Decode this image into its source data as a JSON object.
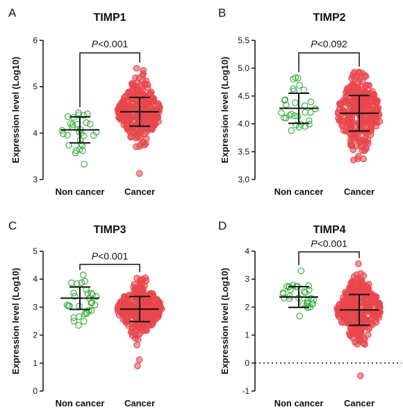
{
  "chart_data": [
    {
      "type": "scatter",
      "panel": "A",
      "title": "TIMP1",
      "ylabel": "Expression level (Log10)",
      "ylim": [
        3,
        6
      ],
      "yticks": [
        "3",
        "4",
        "5",
        "6"
      ],
      "categories": [
        "Non cancer",
        "Cancer"
      ],
      "p_value": {
        "prefix": "P",
        "rest": "<0.001"
      },
      "reference_line": null,
      "series": [
        {
          "category": "Non cancer",
          "color": "#3cb043",
          "n": 30,
          "mean": 4.07,
          "sd": 0.28,
          "min": 3.33,
          "max": 4.44
        },
        {
          "category": "Cancer",
          "color": "#e8474c",
          "n": 300,
          "mean": 4.46,
          "sd": 0.31,
          "min": 3.13,
          "max": 5.4
        }
      ]
    },
    {
      "type": "scatter",
      "panel": "B",
      "title": "TIMP2",
      "ylabel": "Expression level (Log10)",
      "ylim": [
        3.0,
        5.5
      ],
      "yticks": [
        "3.0",
        "3.5",
        "4.0",
        "4.5",
        "5.0",
        "5.5"
      ],
      "categories": [
        "Non cancer",
        "Cancer"
      ],
      "p_value": {
        "prefix": "P",
        "rest": "<0.092"
      },
      "reference_line": null,
      "series": [
        {
          "category": "Non cancer",
          "color": "#3cb043",
          "n": 30,
          "mean": 4.28,
          "sd": 0.27,
          "min": 3.88,
          "max": 4.83
        },
        {
          "category": "Cancer",
          "color": "#e8474c",
          "n": 300,
          "mean": 4.19,
          "sd": 0.32,
          "min": 3.35,
          "max": 4.93
        }
      ]
    },
    {
      "type": "scatter",
      "panel": "C",
      "title": "TIMP3",
      "ylabel": "Expression level (Log10)",
      "ylim": [
        0,
        5
      ],
      "yticks": [
        "0",
        "1",
        "2",
        "3",
        "4",
        "5"
      ],
      "categories": [
        "Non cancer",
        "Cancer"
      ],
      "p_value": {
        "prefix": "P",
        "rest": "<0.001"
      },
      "reference_line": null,
      "series": [
        {
          "category": "Non cancer",
          "color": "#3cb043",
          "n": 30,
          "mean": 3.32,
          "sd": 0.4,
          "min": 2.35,
          "max": 4.15
        },
        {
          "category": "Cancer",
          "color": "#e8474c",
          "n": 300,
          "mean": 2.93,
          "sd": 0.45,
          "min": 0.9,
          "max": 4.05
        }
      ]
    },
    {
      "type": "scatter",
      "panel": "D",
      "title": "TIMP4",
      "ylabel": "Expression level (Log10)",
      "ylim": [
        -1,
        4
      ],
      "yticks": [
        "-1",
        "0",
        "1",
        "2",
        "3",
        "4"
      ],
      "categories": [
        "Non cancer",
        "Cancer"
      ],
      "p_value": {
        "prefix": "P",
        "rest": "<0.001"
      },
      "reference_line": 0,
      "series": [
        {
          "category": "Non cancer",
          "color": "#3cb043",
          "n": 30,
          "mean": 2.36,
          "sd": 0.37,
          "min": 1.68,
          "max": 3.3
        },
        {
          "category": "Cancer",
          "color": "#e8474c",
          "n": 300,
          "mean": 1.9,
          "sd": 0.55,
          "min": -0.45,
          "max": 3.55
        }
      ]
    }
  ]
}
